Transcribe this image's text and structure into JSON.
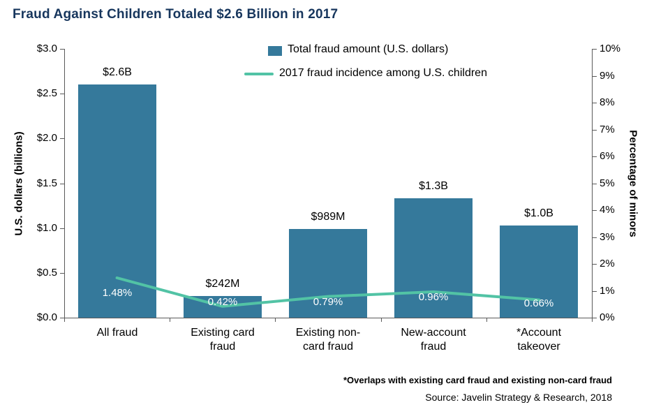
{
  "title": "Fraud Against Children Totaled $2.6 Billion in 2017",
  "legend": {
    "bar_label": "Total fraud amount (U.S. dollars)",
    "line_label": "2017 fraud incidence among U.S. children"
  },
  "footnote": "*Overlaps with existing card fraud and existing non-card fraud",
  "source": "Source: Javelin Strategy & Research, 2018",
  "colors": {
    "bar": "#35799b",
    "line": "#52c3a5",
    "title": "#17365d",
    "axis": "#595959",
    "text": "#000000"
  },
  "chart_data": {
    "type": "bar",
    "categories": [
      "All fraud",
      "Existing card fraud",
      "Existing non-card fraud",
      "New-account fraud",
      "*Account takeover"
    ],
    "series": [
      {
        "name": "Total fraud amount (U.S. dollars)",
        "type": "bar",
        "axis": "left",
        "values_billions": [
          2.6,
          0.242,
          0.989,
          1.33,
          1.03
        ],
        "labels": [
          "$2.6B",
          "$242M",
          "$989M",
          "$1.3B",
          "$1.0B"
        ]
      },
      {
        "name": "2017 fraud incidence among U.S. children",
        "type": "line",
        "axis": "right",
        "values_percent": [
          1.48,
          0.42,
          0.79,
          0.96,
          0.66
        ],
        "labels": [
          "1.48%",
          "0.42%",
          "0.79%",
          "0.96%",
          "0.66%"
        ]
      }
    ],
    "left_axis": {
      "title": "U.S. dollars (billions)",
      "min": 0,
      "max": 3.0,
      "step": 0.5,
      "ticks": [
        "$0.0",
        "$0.5",
        "$1.0",
        "$1.5",
        "$2.0",
        "$2.5",
        "$3.0"
      ]
    },
    "right_axis": {
      "title": "Percentage of minors",
      "min": 0,
      "max": 10,
      "step": 1,
      "ticks": [
        "0%",
        "1%",
        "2%",
        "3%",
        "4%",
        "5%",
        "6%",
        "7%",
        "8%",
        "9%",
        "10%"
      ]
    },
    "grid": false,
    "legend_position": "top-center"
  }
}
